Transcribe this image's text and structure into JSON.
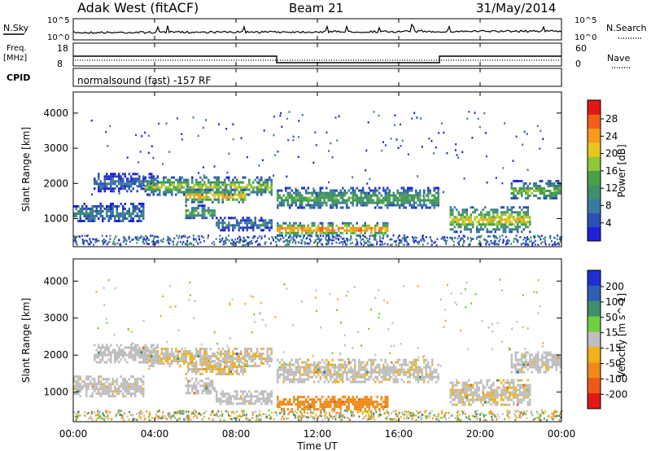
{
  "header": {
    "site": "Adak West (fitACF)",
    "beam": "Beam 21",
    "date": "31/May/2014"
  },
  "labels": {
    "nsky": "N.Sky",
    "nsearch": "N.Search",
    "freq": "Freq.",
    "mhz": "[MHz]",
    "nave": "Nave",
    "cpid": "CPID",
    "cpid_value": "normalsound (fast) -157 RF",
    "ylabel": "Slant Range [km]",
    "xlabel": "Time UT"
  },
  "noise_axis": {
    "left_ticks": [
      "10^5",
      "10^0"
    ],
    "right_ticks": [
      "10^5",
      "10^0"
    ]
  },
  "freq_axis": {
    "left_ticks": [
      "18",
      "8"
    ],
    "right_ticks": [
      "60",
      "0"
    ]
  },
  "time_ticks": [
    "00:00",
    "04:00",
    "08:00",
    "12:00",
    "16:00",
    "20:00",
    "00:00"
  ],
  "power_scale": {
    "label": "Power [dB]",
    "ticks": [
      "28",
      "24",
      "20",
      "16",
      "12",
      "8",
      "4"
    ]
  },
  "velocity_scale": {
    "label": "Velocity [m s^-1]",
    "ticks": [
      "200",
      "100",
      "50",
      "15",
      "-15",
      "-50",
      "-100",
      "-200"
    ]
  },
  "chart_data": {
    "type": "heatmap",
    "x_range_hours": [
      0,
      24
    ],
    "y_range_km": [
      200,
      4600
    ],
    "y_ticks": [
      1000,
      2000,
      3000,
      4000
    ],
    "freq_series": [
      {
        "start": 0,
        "end": 10,
        "mhz": 14
      },
      {
        "start": 10,
        "end": 18,
        "mhz": 10
      },
      {
        "start": 18,
        "end": 24,
        "mhz": 14
      }
    ],
    "echo_regions": [
      {
        "t0": 0.0,
        "t1": 3.5,
        "r0": 900,
        "r1": 1450,
        "power": 9,
        "velocity": -5
      },
      {
        "t0": 1.0,
        "t1": 4.2,
        "r0": 1800,
        "r1": 2300,
        "power": 7,
        "velocity": 0
      },
      {
        "t0": 3.5,
        "t1": 9.8,
        "r0": 1700,
        "r1": 2200,
        "power": 18,
        "velocity": -10
      },
      {
        "t0": 5.5,
        "t1": 8.5,
        "r0": 1500,
        "r1": 1850,
        "power": 24,
        "velocity": -10
      },
      {
        "t0": 5.5,
        "t1": 7.0,
        "r0": 1000,
        "r1": 1400,
        "power": 14,
        "velocity": 0
      },
      {
        "t0": 7.0,
        "t1": 9.8,
        "r0": 700,
        "r1": 1050,
        "power": 9,
        "velocity": -5
      },
      {
        "t0": 10.0,
        "t1": 18.0,
        "r0": 1300,
        "r1": 1900,
        "power": 14,
        "velocity": -8
      },
      {
        "t0": 10.0,
        "t1": 15.5,
        "r0": 550,
        "r1": 900,
        "power": 26,
        "velocity": -45
      },
      {
        "t0": 18.5,
        "t1": 22.5,
        "r0": 650,
        "r1": 1350,
        "power": 20,
        "velocity": -10
      },
      {
        "t0": 21.5,
        "t1": 24.0,
        "r0": 1550,
        "r1": 2100,
        "power": 16,
        "velocity": -5
      }
    ]
  }
}
